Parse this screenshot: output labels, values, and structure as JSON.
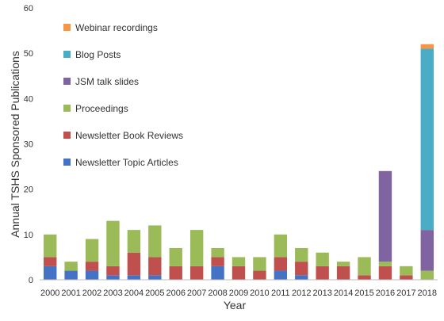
{
  "chart_data": {
    "type": "bar",
    "stacked": true,
    "xlabel": "Year",
    "ylabel": "Annual TSHS Sponsored Publications",
    "ylim": [
      0,
      60
    ],
    "yticks": [
      0,
      10,
      20,
      30,
      40,
      50,
      60
    ],
    "grid": false,
    "legend_position": "top-left",
    "categories": [
      "2000",
      "2001",
      "2002",
      "2003",
      "2004",
      "2005",
      "2006",
      "2007",
      "2008",
      "2009",
      "2010",
      "2011",
      "2012",
      "2013",
      "2014",
      "2015",
      "2016",
      "2017",
      "2018"
    ],
    "series": [
      {
        "name": "Newsletter Topic Articles",
        "color": "#4472c4",
        "values": [
          3,
          2,
          2,
          1,
          1,
          1,
          0,
          0,
          3,
          0,
          0,
          2,
          1,
          0,
          0,
          0,
          0,
          0,
          0
        ]
      },
      {
        "name": "Newsletter Book Reviews",
        "color": "#c0504d",
        "values": [
          2,
          0,
          2,
          2,
          5,
          4,
          3,
          3,
          2,
          3,
          2,
          3,
          3,
          3,
          3,
          1,
          3,
          1,
          0
        ]
      },
      {
        "name": "Proceedings",
        "color": "#9bbb59",
        "values": [
          5,
          2,
          5,
          10,
          5,
          7,
          4,
          8,
          2,
          2,
          3,
          5,
          3,
          3,
          1,
          4,
          1,
          2,
          2
        ]
      },
      {
        "name": "JSM talk slides",
        "color": "#8064a2",
        "values": [
          0,
          0,
          0,
          0,
          0,
          0,
          0,
          0,
          0,
          0,
          0,
          0,
          0,
          0,
          0,
          0,
          20,
          0,
          9
        ]
      },
      {
        "name": "Blog Posts",
        "color": "#4bacc6",
        "values": [
          0,
          0,
          0,
          0,
          0,
          0,
          0,
          0,
          0,
          0,
          0,
          0,
          0,
          0,
          0,
          0,
          0,
          0,
          40
        ]
      },
      {
        "name": "Webinar recordings",
        "color": "#f79646",
        "values": [
          0,
          0,
          0,
          0,
          0,
          0,
          0,
          0,
          0,
          0,
          0,
          0,
          0,
          0,
          0,
          0,
          0,
          0,
          1
        ]
      }
    ]
  }
}
